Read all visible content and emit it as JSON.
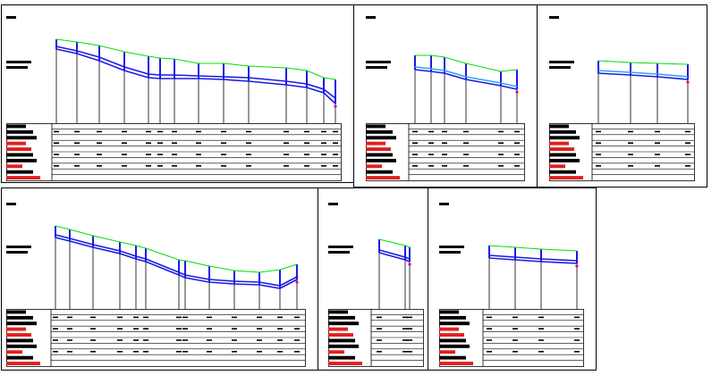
{
  "colors": {
    "background": "#ffffff",
    "frame": "#000000",
    "profile_top": "#00e000",
    "pipe": "#1a1ae6",
    "pipe_light": "#2fa4f0",
    "marker": "#e0007a",
    "label_black": "#000000",
    "label_red": "#e02020"
  },
  "sheets": [
    {
      "id": "profile-1",
      "nodes": 13,
      "label_colors": [
        "black",
        "black",
        "black",
        "red",
        "red",
        "black",
        "black",
        "red",
        "black",
        "red"
      ]
    },
    {
      "id": "profile-2",
      "nodes": 6,
      "label_colors": [
        "black",
        "black",
        "black",
        "red",
        "red",
        "black",
        "black",
        "red",
        "black",
        "red"
      ]
    },
    {
      "id": "profile-3",
      "nodes": 4,
      "label_colors": [
        "black",
        "black",
        "black",
        "red",
        "red",
        "black",
        "black",
        "red",
        "black",
        "red"
      ]
    },
    {
      "id": "profile-4",
      "nodes": 12,
      "label_colors": [
        "black",
        "black",
        "black",
        "red",
        "red",
        "black",
        "black",
        "red",
        "black",
        "red"
      ]
    },
    {
      "id": "profile-5",
      "nodes": 2,
      "label_colors": [
        "black",
        "black",
        "black",
        "red",
        "red",
        "black",
        "black",
        "red",
        "black",
        "red"
      ]
    },
    {
      "id": "profile-6",
      "nodes": 4,
      "label_colors": [
        "black",
        "black",
        "black",
        "red",
        "red",
        "black",
        "black",
        "red",
        "black",
        "red"
      ]
    }
  ]
}
